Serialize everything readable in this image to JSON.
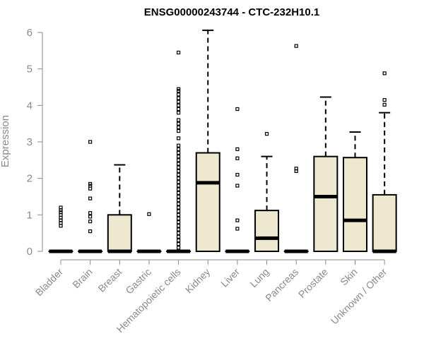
{
  "chart_data": {
    "type": "boxplot",
    "title": "ENSG00000243744 - CTC-232H10.1",
    "ylabel": "Expression",
    "xlabel": "",
    "ylim": [
      0,
      6
    ],
    "yticks": [
      "0",
      "1",
      "2",
      "3",
      "4",
      "5",
      "6"
    ],
    "grid": false,
    "box_fill": "#efe8d0",
    "categories": [
      "Bladder",
      "Brain",
      "Breast",
      "Gastric",
      "Hematopoietic cells",
      "Kidney",
      "Liver",
      "Lung",
      "Pancreas",
      "Prostate",
      "Skin",
      "Unknown / Other"
    ],
    "boxes": [
      {
        "q1": 0,
        "median": 0,
        "q3": 0,
        "whisker_low": 0,
        "whisker_high": 0,
        "outliers": [
          0.7,
          0.78,
          0.85,
          0.92,
          1.0,
          1.07,
          1.13,
          1.2
        ]
      },
      {
        "q1": 0,
        "median": 0,
        "q3": 0,
        "whisker_low": 0,
        "whisker_high": 0,
        "outliers": [
          0.55,
          0.82,
          0.95,
          1.05,
          1.45,
          1.72,
          1.8,
          1.85,
          3.0
        ]
      },
      {
        "q1": 0,
        "median": 0,
        "q3": 1.0,
        "whisker_low": 0,
        "whisker_high": 2.37,
        "outliers": []
      },
      {
        "q1": 0,
        "median": 0,
        "q3": 0,
        "whisker_low": 0,
        "whisker_high": 0,
        "outliers": [
          1.02
        ]
      },
      {
        "q1": 0,
        "median": 0,
        "q3": 0,
        "whisker_low": 0,
        "whisker_high": 0,
        "outliers": [
          0.1,
          0.2,
          0.3,
          0.4,
          0.5,
          0.6,
          0.7,
          0.8,
          0.9,
          1.0,
          1.1,
          1.2,
          1.3,
          1.4,
          1.5,
          1.6,
          1.7,
          1.8,
          1.9,
          2.0,
          2.1,
          2.2,
          2.3,
          2.4,
          2.5,
          2.6,
          2.7,
          2.8,
          2.9,
          3.1,
          3.3,
          3.4,
          3.5,
          3.6,
          3.8,
          3.9,
          4.0,
          4.1,
          4.2,
          4.3,
          4.4,
          4.45,
          5.45
        ]
      },
      {
        "q1": 0,
        "median": 1.88,
        "q3": 2.7,
        "whisker_low": 0,
        "whisker_high": 6.06,
        "outliers": []
      },
      {
        "q1": 0,
        "median": 0,
        "q3": 0,
        "whisker_low": 0,
        "whisker_high": 0,
        "outliers": [
          0.62,
          0.85,
          1.8,
          2.1,
          2.55,
          2.8,
          3.9
        ]
      },
      {
        "q1": 0,
        "median": 0.36,
        "q3": 1.12,
        "whisker_low": 0,
        "whisker_high": 2.6,
        "outliers": [
          3.22
        ]
      },
      {
        "q1": 0,
        "median": 0,
        "q3": 0,
        "whisker_low": 0,
        "whisker_high": 0,
        "outliers": [
          2.2,
          2.27,
          5.63
        ]
      },
      {
        "q1": 0,
        "median": 1.5,
        "q3": 2.6,
        "whisker_low": 0,
        "whisker_high": 4.23,
        "outliers": []
      },
      {
        "q1": 0,
        "median": 0.85,
        "q3": 2.57,
        "whisker_low": 0,
        "whisker_high": 3.27,
        "outliers": []
      },
      {
        "q1": 0,
        "median": 0,
        "q3": 1.55,
        "whisker_low": 0,
        "whisker_high": 3.8,
        "outliers": [
          4.02,
          4.15,
          4.88
        ]
      }
    ]
  }
}
